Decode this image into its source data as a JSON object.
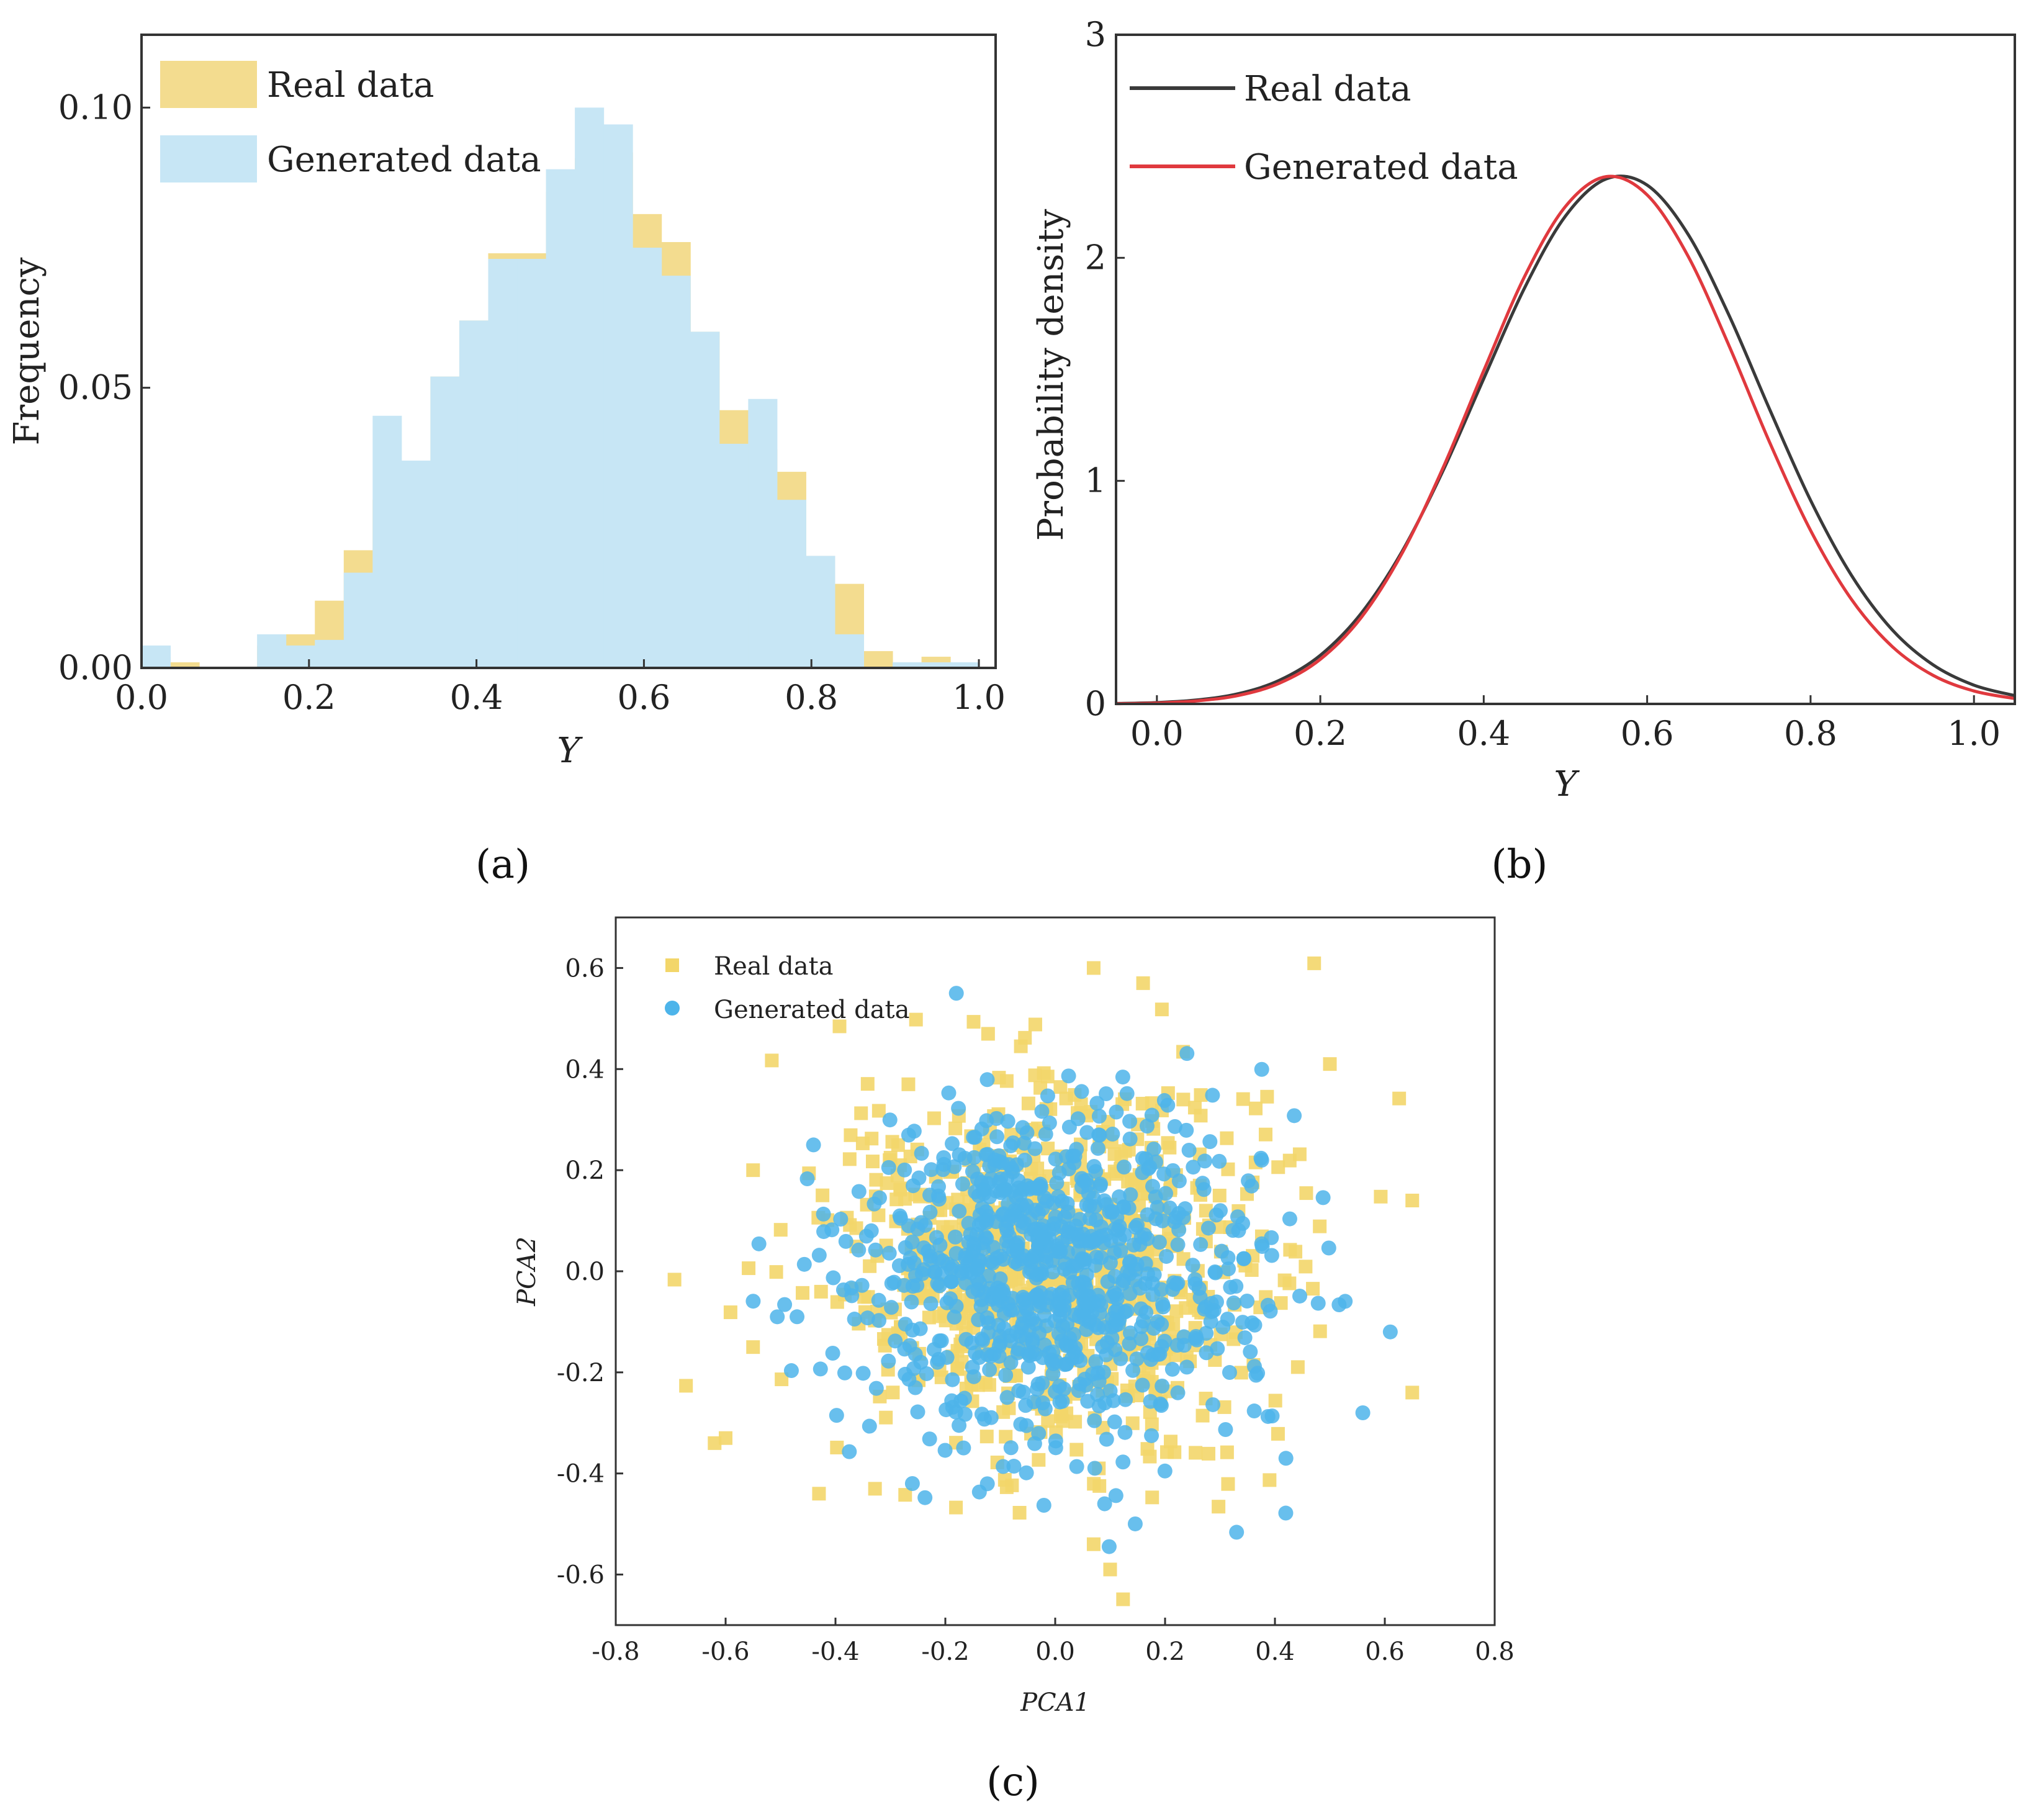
{
  "chart_data": [
    {
      "panel_label": "(a)",
      "type": "bar",
      "subtype": "overlapping-histogram",
      "xlabel": "Y",
      "ylabel": "Frequency",
      "xlim": [
        0.0,
        1.02
      ],
      "ylim": [
        0.0,
        0.113
      ],
      "xticks": [
        "0.0",
        "0.2",
        "0.4",
        "0.6",
        "0.8",
        "1.0"
      ],
      "yticks": [
        "0.00",
        "0.05",
        "0.10"
      ],
      "bin_width": 0.0345,
      "bin_starts": [
        0.0,
        0.0345,
        0.069,
        0.1035,
        0.138,
        0.1725,
        0.207,
        0.2415,
        0.276,
        0.3105,
        0.345,
        0.3795,
        0.414,
        0.4485,
        0.483,
        0.5175,
        0.552,
        0.5865,
        0.621,
        0.6555,
        0.69,
        0.7245,
        0.759,
        0.7935,
        0.828,
        0.8625,
        0.897,
        0.9315,
        0.966
      ],
      "series": [
        {
          "name": "Real data",
          "color": "#f3dc8f",
          "values": [
            0.002,
            0.001,
            0.0,
            0.0,
            0.004,
            0.006,
            0.012,
            0.021,
            0.03,
            0.035,
            0.052,
            0.062,
            0.074,
            0.074,
            0.085,
            0.091,
            0.092,
            0.081,
            0.076,
            0.06,
            0.046,
            0.039,
            0.035,
            0.02,
            0.015,
            0.003,
            0.001,
            0.002,
            0.0
          ]
        },
        {
          "name": "Generated data",
          "color": "#c7e6f5",
          "values": [
            0.004,
            0.0,
            0.0,
            0.0,
            0.006,
            0.004,
            0.005,
            0.017,
            0.045,
            0.037,
            0.052,
            0.062,
            0.073,
            0.073,
            0.089,
            0.1,
            0.097,
            0.075,
            0.07,
            0.06,
            0.04,
            0.048,
            0.03,
            0.02,
            0.006,
            0.0,
            0.001,
            0.001,
            0.001
          ]
        }
      ]
    },
    {
      "panel_label": "(b)",
      "type": "line",
      "xlabel": "Y",
      "ylabel": "Probability density",
      "xlim": [
        -0.05,
        1.05
      ],
      "ylim": [
        0,
        3
      ],
      "xticks": [
        "0.0",
        "0.2",
        "0.4",
        "0.6",
        "0.8",
        "1.0"
      ],
      "yticks": [
        "0",
        "1",
        "2",
        "3"
      ],
      "x": [
        -0.05,
        0.0,
        0.05,
        0.1,
        0.15,
        0.2,
        0.25,
        0.3,
        0.35,
        0.4,
        0.45,
        0.5,
        0.55,
        0.6,
        0.65,
        0.7,
        0.75,
        0.8,
        0.85,
        0.9,
        0.95,
        1.0,
        1.05
      ],
      "series": [
        {
          "name": "Real data",
          "color": "#3a3a3a",
          "values": [
            0.002,
            0.006,
            0.018,
            0.046,
            0.106,
            0.218,
            0.406,
            0.683,
            1.044,
            1.458,
            1.865,
            2.187,
            2.354,
            2.326,
            2.106,
            1.744,
            1.32,
            0.913,
            0.577,
            0.332,
            0.175,
            0.084,
            0.037
          ]
        },
        {
          "name": "Generated data",
          "color": "#e0393e",
          "values": [
            0.001,
            0.004,
            0.014,
            0.038,
            0.093,
            0.2,
            0.387,
            0.675,
            1.057,
            1.494,
            1.916,
            2.23,
            2.364,
            2.282,
            2.008,
            1.608,
            1.172,
            0.778,
            0.469,
            0.257,
            0.128,
            0.058,
            0.024
          ]
        }
      ]
    },
    {
      "panel_label": "(c)",
      "type": "scatter",
      "xlabel": "PCA1",
      "ylabel": "PCA2",
      "xlim": [
        -0.8,
        0.8
      ],
      "ylim": [
        -0.7,
        0.7
      ],
      "xticks": [
        "-0.8",
        "-0.6",
        "-0.4",
        "-0.2",
        "0.0",
        "0.2",
        "0.4",
        "0.6",
        "0.8"
      ],
      "yticks": [
        "-0.6",
        "-0.4",
        "-0.2",
        "0.0",
        "0.2",
        "0.4",
        "0.6"
      ],
      "series": [
        {
          "name": "Real data",
          "marker": "square",
          "color": "#f3d66a",
          "n_points": 850,
          "sd_x": 0.2,
          "sd_y": 0.18,
          "outliers": [
            [
              0.07,
              0.6
            ],
            [
              0.16,
              0.57
            ],
            [
              0.5,
              0.41
            ],
            [
              0.65,
              0.14
            ],
            [
              -0.62,
              -0.34
            ],
            [
              -0.6,
              -0.33
            ],
            [
              0.65,
              -0.24
            ],
            [
              0.07,
              -0.54
            ],
            [
              0.1,
              -0.59
            ],
            [
              -0.55,
              0.2
            ],
            [
              -0.43,
              -0.44
            ],
            [
              -0.55,
              -0.15
            ]
          ]
        },
        {
          "name": "Generated data",
          "marker": "circle",
          "color": "#4db4ea",
          "n_points": 850,
          "sd_x": 0.18,
          "sd_y": 0.16,
          "outliers": [
            [
              -0.18,
              0.55
            ],
            [
              0.61,
              -0.12
            ],
            [
              0.56,
              -0.28
            ],
            [
              -0.44,
              0.25
            ],
            [
              0.42,
              -0.37
            ],
            [
              0.09,
              -0.46
            ],
            [
              -0.26,
              -0.42
            ],
            [
              -0.47,
              -0.09
            ]
          ]
        }
      ]
    }
  ]
}
